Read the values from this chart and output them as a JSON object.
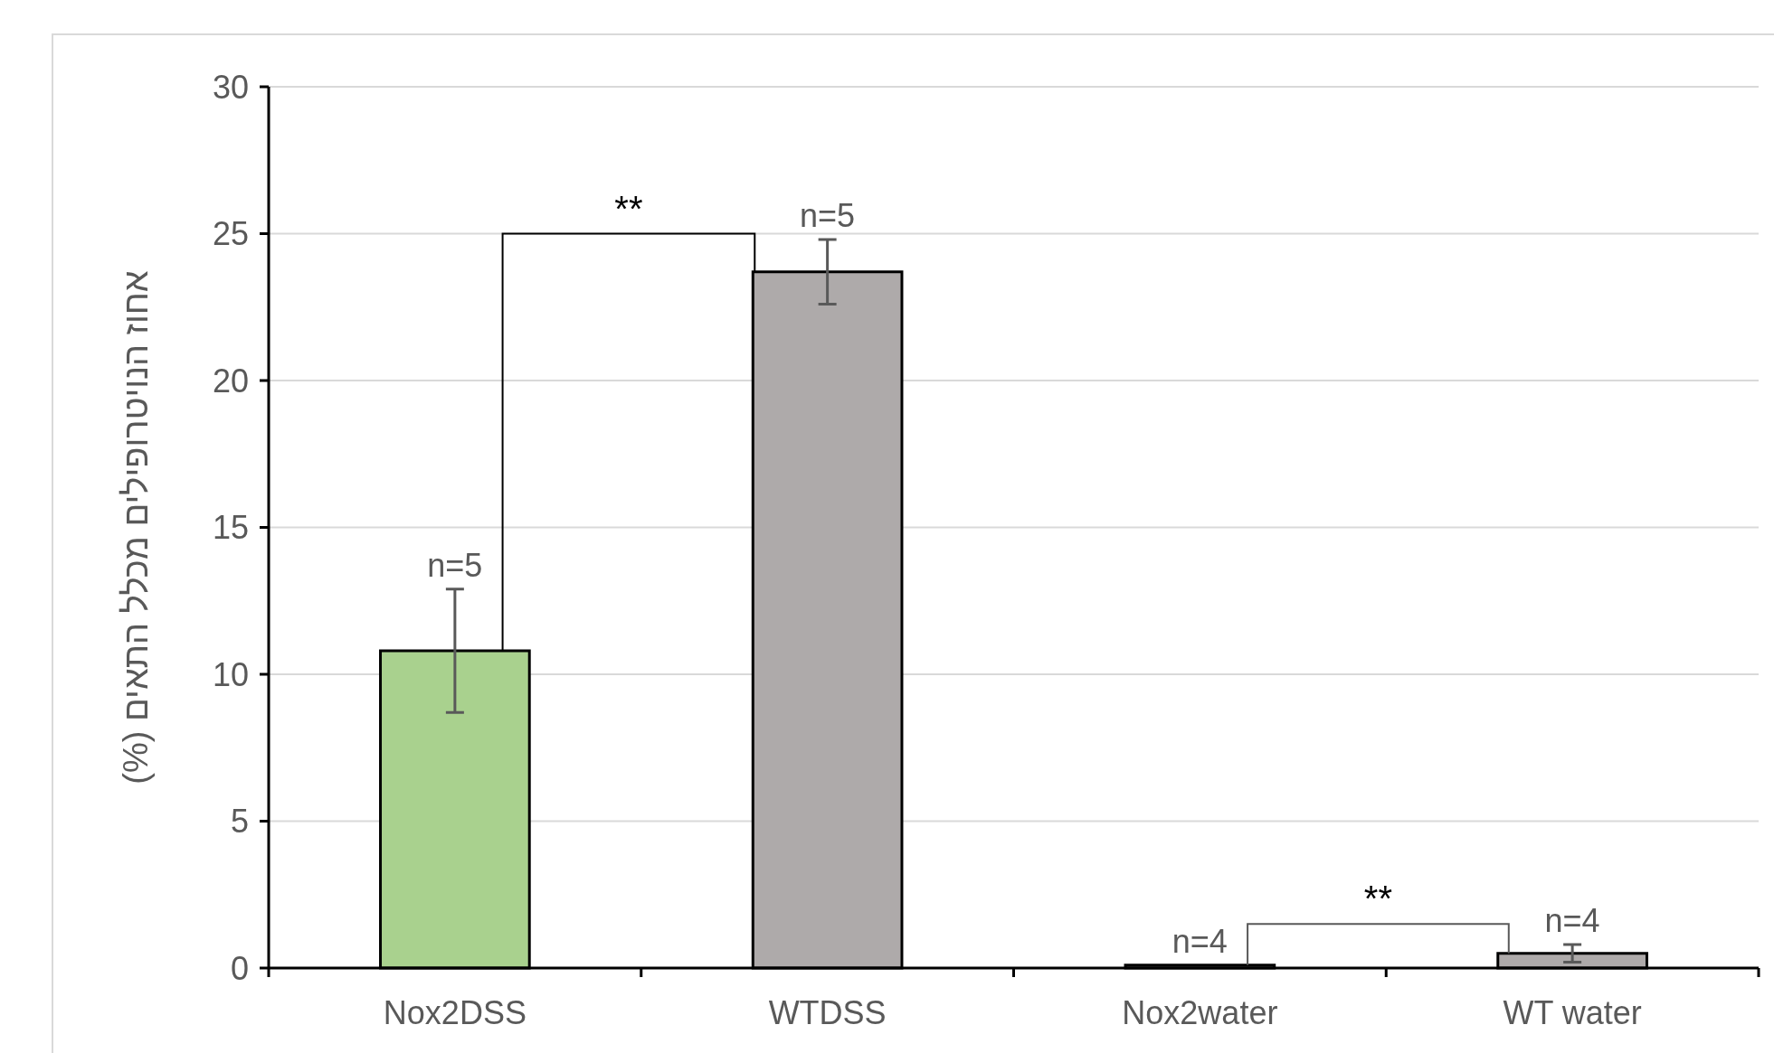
{
  "chart_data": {
    "type": "bar",
    "ylabel": "אחוז הנויטרופילים מכלל התאים (%)",
    "categories": [
      "Nox2DSS",
      "WTDSS",
      "Nox2water",
      "WT water"
    ],
    "values": [
      10.8,
      23.7,
      0.1,
      0.5
    ],
    "colors": [
      "#a9d18e",
      "#aeaaaa",
      "#aeaaaa",
      "#aeaaaa"
    ],
    "errors": [
      2.1,
      1.1,
      null,
      0.3
    ],
    "ylim": [
      0,
      30
    ],
    "yticks": [
      0,
      5,
      10,
      15,
      20,
      25,
      30
    ],
    "grid": "y",
    "annotations": [
      {
        "text": "n=5",
        "x": "Nox2DSS",
        "y": 12.9
      },
      {
        "text": "n=5",
        "x": "WTDSS",
        "y": 24.8
      },
      {
        "text": "n=4",
        "x": "Nox2water",
        "y": 0.1
      },
      {
        "text": "n=4",
        "x": "WT water",
        "y": 0.8
      },
      "**",
      "**"
    ]
  }
}
